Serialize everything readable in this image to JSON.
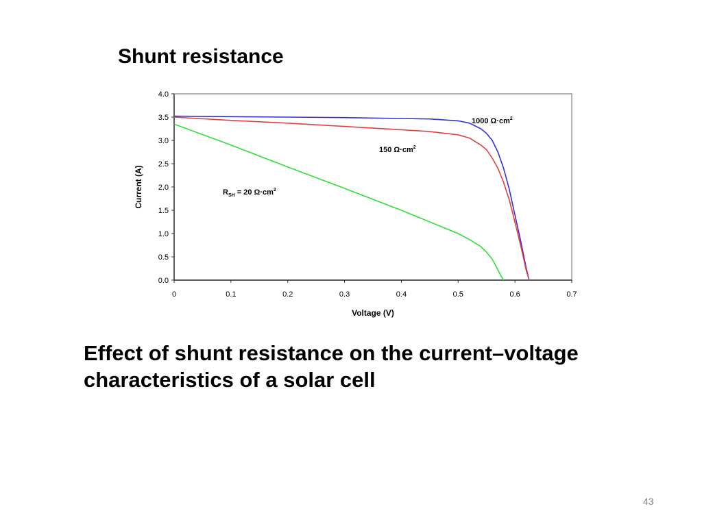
{
  "slide": {
    "title": "Shunt resistance",
    "caption_line1": "Effect of shunt resistance on the current–voltage",
    "caption_line2": "characteristics of a solar cell",
    "page_number": "43"
  },
  "chart_data": {
    "type": "line",
    "title": "",
    "xlabel": "Voltage (V)",
    "ylabel": "Current (A)",
    "xlim": [
      0,
      0.7
    ],
    "ylim": [
      0,
      4.0
    ],
    "xticks": [
      "0",
      "0.1",
      "0.2",
      "0.3",
      "0.4",
      "0.5",
      "0.6",
      "0.7"
    ],
    "yticks": [
      "0.0",
      "0.5",
      "1.0",
      "1.5",
      "2.0",
      "2.5",
      "3.0",
      "3.5",
      "4.0"
    ],
    "grid": false,
    "series": [
      {
        "name": "1000 Ω·cm²",
        "label_main": "1000 Ω·cm",
        "label_sup": "2",
        "color": "#3333cc",
        "x": [
          0,
          0.1,
          0.2,
          0.3,
          0.4,
          0.45,
          0.5,
          0.52,
          0.54,
          0.55,
          0.56,
          0.57,
          0.58,
          0.59,
          0.6,
          0.61,
          0.62,
          0.625
        ],
        "y": [
          3.52,
          3.51,
          3.5,
          3.49,
          3.47,
          3.46,
          3.42,
          3.37,
          3.25,
          3.15,
          3.0,
          2.75,
          2.4,
          1.95,
          1.4,
          0.85,
          0.25,
          0
        ]
      },
      {
        "name": "150 Ω·cm²",
        "label_main": "150 Ω·cm",
        "label_sup": "2",
        "color": "#e04040",
        "x": [
          0,
          0.1,
          0.2,
          0.3,
          0.4,
          0.45,
          0.5,
          0.52,
          0.54,
          0.55,
          0.56,
          0.57,
          0.58,
          0.59,
          0.6,
          0.61,
          0.62,
          0.625
        ],
        "y": [
          3.5,
          3.43,
          3.37,
          3.3,
          3.23,
          3.19,
          3.12,
          3.05,
          2.9,
          2.8,
          2.62,
          2.4,
          2.1,
          1.72,
          1.25,
          0.75,
          0.2,
          0
        ]
      },
      {
        "name": "R_SH = 20 Ω·cm²",
        "label_main": "R",
        "label_sub": "SH",
        "label_rest": " = 20 Ω·cm",
        "label_sup": "2",
        "color": "#33dd33",
        "x": [
          0,
          0.1,
          0.2,
          0.3,
          0.4,
          0.45,
          0.5,
          0.52,
          0.54,
          0.55,
          0.56,
          0.57,
          0.575,
          0.58
        ],
        "y": [
          3.35,
          2.9,
          2.43,
          1.97,
          1.5,
          1.25,
          1.0,
          0.87,
          0.72,
          0.6,
          0.45,
          0.22,
          0.1,
          0
        ]
      }
    ]
  }
}
